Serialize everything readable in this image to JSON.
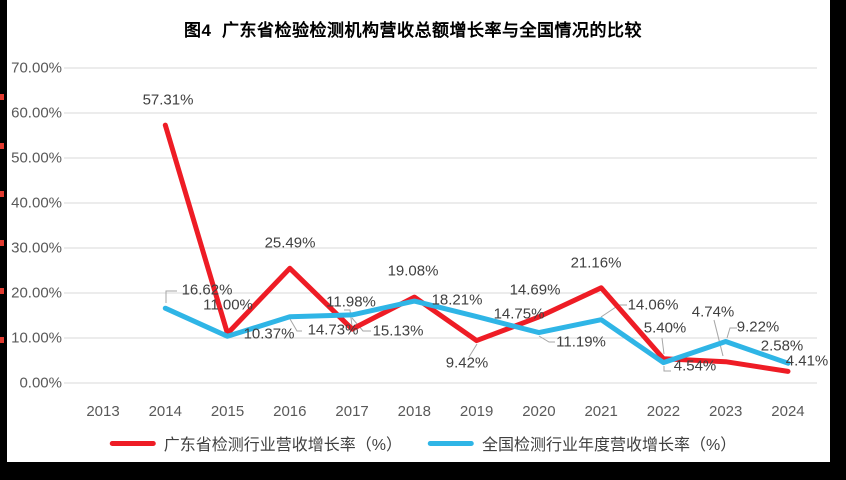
{
  "chart_data": {
    "type": "line",
    "title": "图4  广东省检验检测机构营收总额增长率与全国情况的比较",
    "categories": [
      "2013",
      "2014",
      "2015",
      "2016",
      "2017",
      "2018",
      "2019",
      "2020",
      "2021",
      "2022",
      "2023",
      "2024"
    ],
    "series": [
      {
        "name": "广东省检测行业营收增长率（%）",
        "color": "#ee1c25",
        "values": [
          null,
          57.31,
          11.0,
          25.49,
          11.98,
          19.08,
          9.42,
          14.69,
          21.16,
          5.4,
          4.74,
          2.58
        ]
      },
      {
        "name": "全国检测行业年度营收增长率（%）",
        "color": "#2fb5e6",
        "values": [
          null,
          16.62,
          10.37,
          14.73,
          15.13,
          18.21,
          14.75,
          11.19,
          14.06,
          4.54,
          9.22,
          4.41
        ]
      }
    ],
    "y_ticks": [
      "0.00%",
      "10.00%",
      "20.00%",
      "30.00%",
      "40.00%",
      "50.00%",
      "60.00%",
      "70.00%"
    ],
    "ylim": [
      0,
      70
    ],
    "grid": true,
    "gridline_color": "#d9d9d9",
    "leader_line_color": "#a6a6a6",
    "legend_position": "bottom",
    "data_labels": true,
    "label_format": "0.00%"
  }
}
